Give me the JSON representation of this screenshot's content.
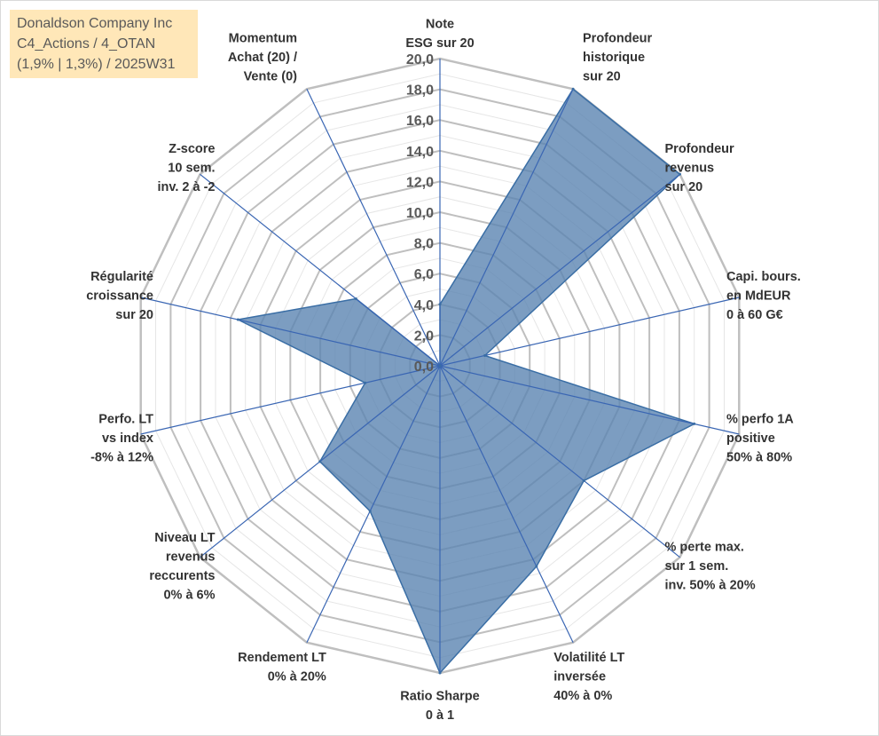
{
  "title": {
    "lines": [
      "Donaldson Company Inc",
      "C4_Actions / 4_OTAN",
      "(1,9% | 1,3%) / 2025W31"
    ]
  },
  "colors": {
    "fill": "#5b84b1",
    "stroke": "#3a6ea5",
    "axis": "#3a66b3",
    "grid_major": "#bfbfbf",
    "grid_minor": "#e6e6e6",
    "title_bg": "#ffe7b8"
  },
  "chart_data": {
    "type": "radar",
    "rmin": 0,
    "rmax": 20,
    "tick_step": 2,
    "tick_labels": [
      "0,0",
      "2,0",
      "4,0",
      "6,0",
      "8,0",
      "10,0",
      "12,0",
      "14,0",
      "16,0",
      "18,0",
      "20,0"
    ],
    "axes": [
      {
        "label": [
          "Note",
          "ESG sur 20"
        ],
        "value": 4.0
      },
      {
        "label": [
          "Profondeur",
          "historique",
          "sur 20"
        ],
        "value": 20.0
      },
      {
        "label": [
          "Profondeur",
          "revenus",
          "sur 20"
        ],
        "value": 20.0
      },
      {
        "label": [
          "Capi. bours.",
          "en MdEUR",
          "0 à 60 G€"
        ],
        "value": 3.0
      },
      {
        "label": [
          "% perfo 1A",
          "positive",
          "50% à 80%"
        ],
        "value": 17.0
      },
      {
        "label": [
          "% perte max.",
          "sur 1 sem.",
          "inv. 50% à 20%"
        ],
        "value": 12.0
      },
      {
        "label": [
          "Volatilité LT",
          "inversée",
          "40% à 0%"
        ],
        "value": 14.5
      },
      {
        "label": [
          "Ratio Sharpe",
          "0 à 1"
        ],
        "value": 20.0
      },
      {
        "label": [
          "Rendement LT",
          "0% à 20%"
        ],
        "value": 10.5
      },
      {
        "label": [
          "Niveau LT",
          "revenus",
          "reccurents",
          "0% à 6%"
        ],
        "value": 10.0
      },
      {
        "label": [
          "Perfo. LT",
          "vs index",
          "-8% à 12%"
        ],
        "value": 5.0
      },
      {
        "label": [
          "Régularité",
          "croissance",
          "sur 20"
        ],
        "value": 13.5
      },
      {
        "label": [
          "Z-score",
          "10 sem.",
          "inv. 2 à -2"
        ],
        "value": 7.0
      },
      {
        "label": [
          "Momentum",
          "Achat (20) /",
          "Vente (0)"
        ],
        "value": 0.0
      }
    ]
  }
}
